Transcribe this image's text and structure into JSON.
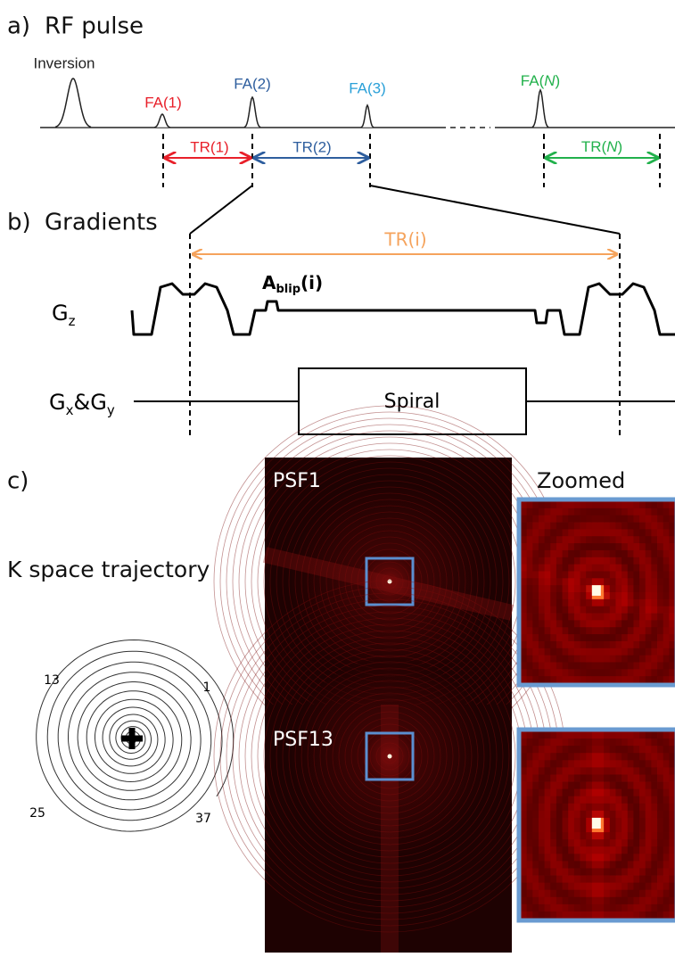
{
  "panel_a": {
    "label": "a)",
    "title": "RF pulse",
    "inversion": "Inversion",
    "fa": [
      "FA(1)",
      "FA(2)",
      "FA(3)"
    ],
    "fa_n": {
      "prefix": "FA(",
      "var": "N",
      "suffix": ")"
    },
    "tr": [
      "TR(1)",
      "TR(2)"
    ],
    "tr_n": {
      "prefix": "TR(",
      "var": "N",
      "suffix": ")"
    }
  },
  "panel_b": {
    "label": "b)",
    "title": "Gradients",
    "tr_i": "TR(i)",
    "blip": {
      "base": "A",
      "sub": "blip",
      "suffix": "(i)"
    },
    "gz": {
      "base": "G",
      "sub": "z"
    },
    "gxy": {
      "base1": "G",
      "sub1": "x",
      "amp": "&",
      "base2": "G",
      "sub2": "y"
    },
    "spiral": "Spiral"
  },
  "panel_c": {
    "label": "c)",
    "trajectory_title": "K space trajectory",
    "trajectory_labels": [
      "13",
      "1",
      "25",
      "37"
    ],
    "psf": [
      "PSF1",
      "PSF13"
    ],
    "zoomed": "Zoomed"
  }
}
